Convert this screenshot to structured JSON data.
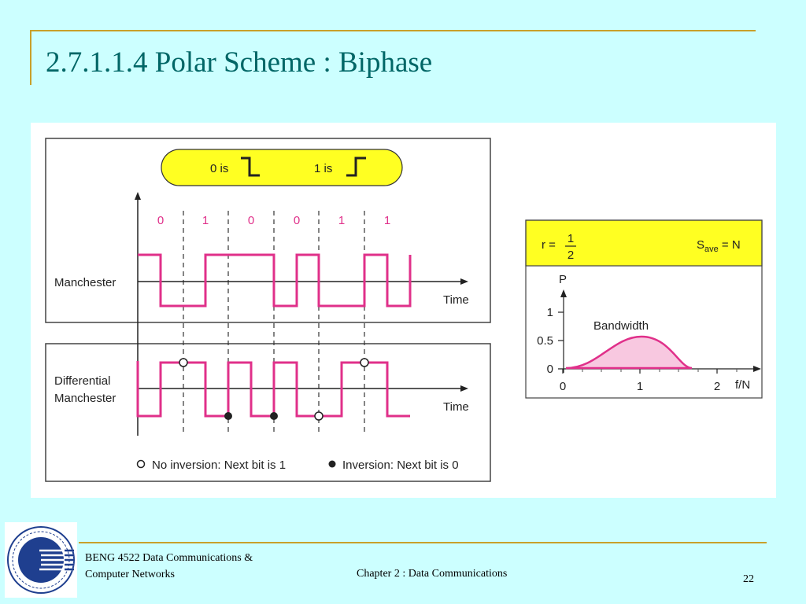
{
  "slide": {
    "title": "2.7.1.1.4 Polar Scheme : Biphase"
  },
  "legend_box": {
    "zero_label": "0 is",
    "one_label": "1 is"
  },
  "bits": [
    "0",
    "1",
    "0",
    "0",
    "1",
    "1"
  ],
  "manchester": {
    "label": "Manchester",
    "axis_label": "Time"
  },
  "differential": {
    "label_line1": "Differential",
    "label_line2": "Manchester",
    "axis_label": "Time"
  },
  "inversion_legend": {
    "no_inversion": "No inversion: Next bit is 1",
    "inversion": "Inversion: Next bit is 0"
  },
  "spectrum": {
    "r_label": "r =",
    "r_num": "1",
    "r_den": "2",
    "s_main": "S",
    "s_sub": "ave",
    "s_rest": " = N",
    "p_label": "P",
    "bandwidth_label": "Bandwidth",
    "f_label": "f/N",
    "y_ticks": [
      "1",
      "0.5",
      "0"
    ],
    "x_ticks": [
      "0",
      "1",
      "2"
    ]
  },
  "footer": {
    "course_line1": "BENG 4522 Data Communications &",
    "course_line2": "Computer Networks",
    "chapter": "Chapter 2 : Data Communications",
    "page": "22"
  },
  "colors": {
    "signal": "#e0308a",
    "yellow": "#ffff22",
    "title": "#006666",
    "rule": "#c8a02a",
    "fill": "#f8c8e0"
  }
}
